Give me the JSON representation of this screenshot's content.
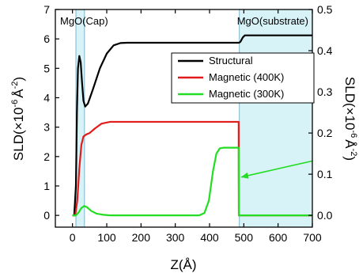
{
  "chart_data": {
    "type": "line",
    "x": [
      0,
      20,
      40,
      60,
      80,
      100,
      125,
      150,
      200,
      300,
      400,
      480,
      481,
      490,
      495,
      500,
      600,
      700
    ],
    "xlabel_parts": {
      "main": "Z(",
      "unit": "Å",
      "close": ")"
    },
    "xlim": [
      -50,
      700
    ],
    "xticks": [
      0,
      100,
      200,
      300,
      400,
      500,
      600,
      700
    ],
    "ylabel_left_parts": {
      "main": "SLD(×10",
      "exp": "-6",
      "unit": "Å",
      "exp2": "-2",
      "close": ")"
    },
    "ylim_left": [
      -0.4,
      7
    ],
    "yticks_left": [
      0,
      1,
      2,
      3,
      4,
      5,
      6,
      7
    ],
    "ylabel_right_parts": {
      "main": "SLD(×10",
      "exp": "-6",
      "unit": "Å",
      "exp2": "-2",
      "close": ")"
    },
    "ylim_right": [
      -0.02857,
      0.5
    ],
    "yticks_right": [
      0.0,
      0.1,
      0.2,
      0.3,
      0.4,
      0.5
    ],
    "series": [
      {
        "name": "Structural",
        "color": "#000000",
        "axis": "left",
        "points": [
          [
            0,
            0
          ],
          [
            5,
            0
          ],
          [
            10,
            1
          ],
          [
            13,
            3.5
          ],
          [
            16,
            5.0
          ],
          [
            20,
            5.42
          ],
          [
            24,
            5.2
          ],
          [
            28,
            4.5
          ],
          [
            32,
            3.9
          ],
          [
            37,
            3.7
          ],
          [
            45,
            3.8
          ],
          [
            60,
            4.3
          ],
          [
            80,
            5.0
          ],
          [
            100,
            5.5
          ],
          [
            120,
            5.78
          ],
          [
            140,
            5.86
          ],
          [
            160,
            5.87
          ],
          [
            300,
            5.87
          ],
          [
            486,
            5.87
          ],
          [
            490,
            5.9
          ],
          [
            497,
            6.05
          ],
          [
            503,
            6.12
          ],
          [
            520,
            6.12
          ],
          [
            700,
            6.12
          ]
        ]
      },
      {
        "name": "Magnetic (400K)",
        "color": "#e21b1b",
        "axis": "left",
        "points": [
          [
            0,
            0
          ],
          [
            8,
            0
          ],
          [
            14,
            0.5
          ],
          [
            20,
            1.6
          ],
          [
            26,
            2.4
          ],
          [
            32,
            2.68
          ],
          [
            40,
            2.75
          ],
          [
            50,
            2.8
          ],
          [
            65,
            2.95
          ],
          [
            85,
            3.12
          ],
          [
            110,
            3.18
          ],
          [
            300,
            3.18
          ],
          [
            485,
            3.18
          ],
          [
            485.5,
            0
          ],
          [
            700,
            0
          ]
        ]
      },
      {
        "name": "Magnetic (300K)",
        "color": "#22dd22",
        "axis": "left",
        "points": [
          [
            0,
            0
          ],
          [
            10,
            0
          ],
          [
            18,
            0.1
          ],
          [
            26,
            0.25
          ],
          [
            34,
            0.32
          ],
          [
            42,
            0.28
          ],
          [
            55,
            0.15
          ],
          [
            70,
            0.06
          ],
          [
            90,
            0.02
          ],
          [
            110,
            0
          ],
          [
            370,
            0
          ],
          [
            385,
            0.08
          ],
          [
            398,
            0.5
          ],
          [
            410,
            1.5
          ],
          [
            420,
            2.1
          ],
          [
            430,
            2.28
          ],
          [
            440,
            2.3
          ],
          [
            485,
            2.3
          ],
          [
            485.5,
            0
          ],
          [
            700,
            0
          ]
        ]
      }
    ],
    "regions": [
      {
        "label": "MgO(Cap)",
        "from": 10,
        "to": 35
      },
      {
        "label": "MgO(substrate)",
        "from": 487,
        "to": 700
      }
    ],
    "region_color": "#d7f3f8",
    "region_edge": "#7fb6cc",
    "arrow": {
      "from": [
        700,
        1.85
      ],
      "to": [
        492,
        1.3
      ],
      "color": "#22dd22"
    },
    "legend_position": "upper-right",
    "grid": false
  }
}
